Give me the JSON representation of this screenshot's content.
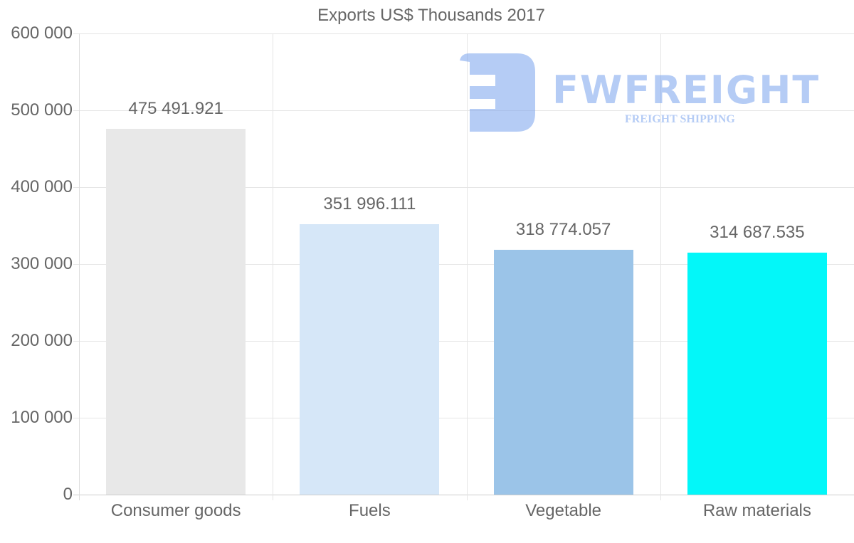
{
  "chart_data": {
    "type": "bar",
    "title": "Exports US$ Thousands 2017",
    "xlabel": "",
    "ylabel": "",
    "categories": [
      "Consumer goods",
      "Fuels",
      "Vegetable",
      "Raw materials"
    ],
    "values": [
      475491.921,
      351996.111,
      318774.057,
      314687.535
    ],
    "value_labels": [
      "475 491.921",
      "351 996.111",
      "318 774.057",
      "314 687.535"
    ],
    "colors": [
      "#e8e8e8",
      "#d6e7f8",
      "#9bc4e8",
      "#03f7f9"
    ],
    "ylim": [
      0,
      600000
    ],
    "yticks": [
      0,
      100000,
      200000,
      300000,
      400000,
      500000,
      600000
    ],
    "ytick_labels": [
      "0",
      "100 000",
      "200 000",
      "300 000",
      "400 000",
      "500 000",
      "600 000"
    ],
    "grid": true,
    "legend": "none"
  },
  "watermark": {
    "brand": "FWFREIGHT",
    "tagline": "FREIGHT SHIPPING",
    "color": "#7aa3ee"
  }
}
